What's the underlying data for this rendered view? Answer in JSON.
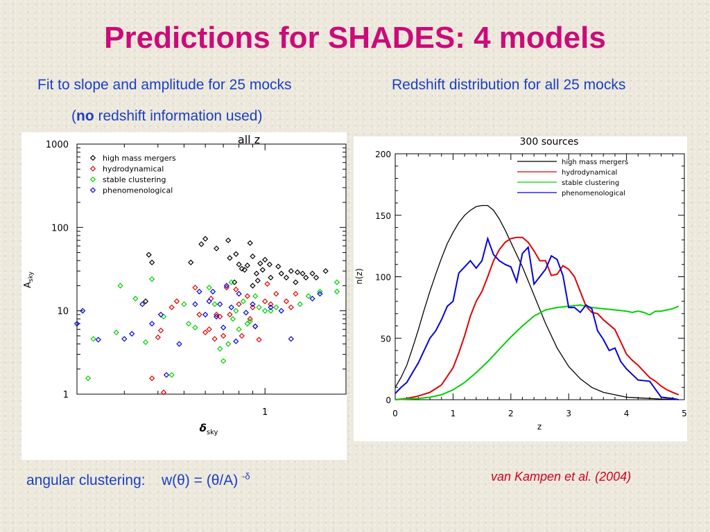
{
  "slide": {
    "title": "Predictions for SHADES: 4 models",
    "left_caption": "Fit to slope and amplitude for 25 mocks",
    "left_caption2_prefix": "(",
    "left_caption2_bold": "no",
    "left_caption2_rest": " redshift information used)",
    "right_caption": "Redshift distribution for all 25 mocks",
    "formula_label": "angular clustering:",
    "formula_main": "w(θ) = (θ/A)",
    "formula_exp": "-δ",
    "credit": "van Kampen et al. (2004)"
  },
  "colors": {
    "title": "#cc0a78",
    "caption": "#1a3fc4",
    "credit": "#d4001e",
    "high_mass_mergers": "#000000",
    "hydrodynamical": "#e00000",
    "stable_clustering": "#00d000",
    "phenomenological": "#0000e0"
  },
  "chart_data": [
    {
      "type": "scatter",
      "title": "all  z",
      "xlabel": "δ",
      "xlabel_sub": "sky",
      "ylabel": "A",
      "ylabel_sub": "sky",
      "x_scale": "log",
      "y_scale": "log",
      "xlim": [
        0.2,
        2.0
      ],
      "ylim": [
        1,
        1000
      ],
      "x_ticks": [
        "1"
      ],
      "y_ticks": [
        "1",
        "10",
        "100",
        "1000"
      ],
      "legend_position": "top-left",
      "series": [
        {
          "name": "high mass mergers",
          "color": "#000000",
          "marker": "diamond",
          "points": [
            [
              0.37,
              47
            ],
            [
              0.38,
              38
            ],
            [
              0.36,
              13
            ],
            [
              0.53,
              38
            ],
            [
              0.58,
              63
            ],
            [
              0.6,
              73
            ],
            [
              0.66,
              56
            ],
            [
              0.73,
              70
            ],
            [
              0.74,
              43
            ],
            [
              0.78,
              48
            ],
            [
              0.8,
              36
            ],
            [
              0.82,
              32
            ],
            [
              0.84,
              31
            ],
            [
              0.86,
              35
            ],
            [
              0.88,
              65
            ],
            [
              0.9,
              45
            ],
            [
              0.93,
              28
            ],
            [
              0.96,
              37
            ],
            [
              0.98,
              31
            ],
            [
              1.0,
              41
            ],
            [
              1.05,
              25
            ],
            [
              1.12,
              34
            ],
            [
              1.15,
              28
            ],
            [
              1.2,
              25
            ],
            [
              1.25,
              30
            ],
            [
              1.32,
              29
            ],
            [
              1.38,
              28
            ],
            [
              1.5,
              28
            ],
            [
              1.55,
              25
            ],
            [
              1.68,
              30
            ],
            [
              1.04,
              36
            ],
            [
              0.94,
              23
            ],
            [
              1.3,
              22
            ],
            [
              1.42,
              25
            ],
            [
              0.77,
              22
            ],
            [
              0.9,
              20
            ]
          ]
        },
        {
          "name": "hydrodynamical",
          "color": "#e00000",
          "marker": "diamond",
          "points": [
            [
              0.38,
              1.55
            ],
            [
              0.42,
              1.05
            ],
            [
              0.4,
              4.8
            ],
            [
              0.41,
              5.8
            ],
            [
              0.45,
              11
            ],
            [
              0.47,
              13
            ],
            [
              0.55,
              19
            ],
            [
              0.57,
              9
            ],
            [
              0.6,
              5.5
            ],
            [
              0.62,
              6
            ],
            [
              0.63,
              14
            ],
            [
              0.65,
              4.6
            ],
            [
              0.66,
              9
            ],
            [
              0.7,
              5
            ],
            [
              0.72,
              19
            ],
            [
              0.74,
              9
            ],
            [
              0.78,
              18
            ],
            [
              0.8,
              12
            ],
            [
              0.82,
              5
            ],
            [
              0.86,
              15
            ],
            [
              0.88,
              8
            ],
            [
              0.9,
              11
            ],
            [
              0.95,
              4.5
            ],
            [
              1.0,
              13
            ],
            [
              1.02,
              21
            ],
            [
              1.05,
              12
            ],
            [
              1.1,
              16
            ],
            [
              1.2,
              13
            ],
            [
              1.25,
              11
            ],
            [
              1.3,
              16
            ],
            [
              0.68,
              8.5
            ],
            [
              0.92,
              6.5
            ]
          ]
        },
        {
          "name": "stable clustering",
          "color": "#00d000",
          "marker": "diamond",
          "points": [
            [
              0.22,
              1.55
            ],
            [
              0.23,
              4.6
            ],
            [
              0.28,
              5.5
            ],
            [
              0.29,
              20
            ],
            [
              0.33,
              14
            ],
            [
              0.36,
              4.2
            ],
            [
              0.38,
              24
            ],
            [
              0.42,
              8.5
            ],
            [
              0.45,
              1.7
            ],
            [
              0.5,
              12
            ],
            [
              0.52,
              7
            ],
            [
              0.55,
              6.3
            ],
            [
              0.62,
              19
            ],
            [
              0.65,
              12
            ],
            [
              0.68,
              3.5
            ],
            [
              0.7,
              2.5
            ],
            [
              0.75,
              22
            ],
            [
              0.76,
              8
            ],
            [
              0.78,
              10
            ],
            [
              0.8,
              6
            ],
            [
              0.83,
              13
            ],
            [
              0.86,
              7
            ],
            [
              0.88,
              7.5
            ],
            [
              0.92,
              15
            ],
            [
              0.95,
              11
            ],
            [
              1.0,
              10
            ],
            [
              1.05,
              10
            ],
            [
              1.1,
              11
            ],
            [
              1.35,
              12
            ],
            [
              1.45,
              15
            ],
            [
              1.6,
              17
            ],
            [
              1.85,
              22
            ],
            [
              1.85,
              17
            ],
            [
              0.73,
              4
            ]
          ]
        },
        {
          "name": "phenomenological",
          "color": "#0000e0",
          "marker": "diamond",
          "points": [
            [
              0.2,
              7
            ],
            [
              0.21,
              10
            ],
            [
              0.24,
              4.5
            ],
            [
              0.3,
              4.6
            ],
            [
              0.32,
              5.3
            ],
            [
              0.35,
              12
            ],
            [
              0.38,
              7
            ],
            [
              0.41,
              9
            ],
            [
              0.43,
              1.7
            ],
            [
              0.48,
              4
            ],
            [
              0.55,
              12
            ],
            [
              0.57,
              17
            ],
            [
              0.6,
              9
            ],
            [
              0.62,
              13
            ],
            [
              0.64,
              17
            ],
            [
              0.66,
              8.5
            ],
            [
              0.68,
              12
            ],
            [
              0.7,
              6.3
            ],
            [
              0.72,
              20
            ],
            [
              0.75,
              11
            ],
            [
              0.78,
              4.3
            ],
            [
              0.8,
              16
            ],
            [
              0.85,
              9.5
            ],
            [
              0.9,
              12
            ],
            [
              0.92,
              6.5
            ],
            [
              1.05,
              11
            ],
            [
              1.15,
              10
            ],
            [
              1.25,
              4.6
            ],
            [
              1.5,
              14
            ],
            [
              1.6,
              16
            ]
          ]
        }
      ]
    },
    {
      "type": "line",
      "title": "300 sources",
      "xlabel": "z",
      "ylabel": "n(z)",
      "xlim": [
        0,
        5
      ],
      "ylim": [
        0,
        200
      ],
      "x_ticks": [
        "0",
        "1",
        "2",
        "3",
        "4",
        "5"
      ],
      "y_ticks": [
        "0",
        "50",
        "100",
        "150",
        "200"
      ],
      "legend_position": "top-right",
      "series": [
        {
          "name": "high mass mergers",
          "color": "#000000",
          "x": [
            0.0,
            0.1,
            0.2,
            0.3,
            0.4,
            0.5,
            0.6,
            0.7,
            0.8,
            0.9,
            1.0,
            1.1,
            1.2,
            1.3,
            1.4,
            1.5,
            1.6,
            1.7,
            1.8,
            1.9,
            2.0,
            2.2,
            2.4,
            2.6,
            2.8,
            3.0,
            3.2,
            3.4,
            3.6,
            3.8,
            4.0,
            4.2,
            4.4,
            4.6,
            4.8,
            4.9
          ],
          "y": [
            10,
            18,
            28,
            42,
            57,
            73,
            88,
            102,
            115,
            127,
            136,
            144,
            150,
            154,
            157,
            158,
            158,
            154,
            147,
            138,
            128,
            108,
            85,
            62,
            42,
            27,
            17,
            10,
            6,
            4,
            2,
            1.5,
            1,
            0.5,
            0.3,
            0.2
          ]
        },
        {
          "name": "hydrodynamical",
          "color": "#e00000",
          "x": [
            0.0,
            0.2,
            0.4,
            0.6,
            0.8,
            1.0,
            1.1,
            1.2,
            1.3,
            1.4,
            1.5,
            1.6,
            1.7,
            1.8,
            1.9,
            2.0,
            2.1,
            2.2,
            2.3,
            2.4,
            2.5,
            2.6,
            2.7,
            2.8,
            2.9,
            3.0,
            3.1,
            3.2,
            3.3,
            3.4,
            3.5,
            3.6,
            3.7,
            3.8,
            3.9,
            4.0,
            4.1,
            4.2,
            4.3,
            4.4,
            4.5,
            4.6,
            4.7,
            4.8,
            4.9
          ],
          "y": [
            0,
            1,
            3,
            6,
            12,
            26,
            38,
            52,
            68,
            80,
            88,
            100,
            113,
            122,
            128,
            131,
            132,
            132,
            128,
            121,
            113,
            113,
            101,
            102,
            109,
            106,
            100,
            88,
            76,
            71,
            70,
            65,
            61,
            57,
            47,
            37,
            32,
            28,
            23,
            18,
            15,
            11,
            8,
            6,
            4
          ]
        },
        {
          "name": "stable clustering",
          "color": "#00d000",
          "x": [
            0.0,
            0.2,
            0.4,
            0.6,
            0.8,
            1.0,
            1.2,
            1.4,
            1.6,
            1.8,
            2.0,
            2.2,
            2.4,
            2.6,
            2.8,
            3.0,
            3.2,
            3.4,
            3.6,
            3.8,
            4.0,
            4.1,
            4.2,
            4.3,
            4.4,
            4.5,
            4.6,
            4.7,
            4.8,
            4.9
          ],
          "y": [
            0,
            0.5,
            1,
            2,
            4,
            8,
            14,
            22,
            31,
            41,
            51,
            60,
            68,
            73,
            75,
            76,
            77,
            75,
            74,
            73,
            72,
            71,
            72,
            71,
            69,
            72,
            72,
            73,
            74,
            76
          ]
        },
        {
          "name": "phenomenological",
          "color": "#0000e0",
          "x": [
            0.0,
            0.1,
            0.2,
            0.3,
            0.4,
            0.5,
            0.6,
            0.7,
            0.8,
            0.9,
            1.0,
            1.1,
            1.2,
            1.3,
            1.4,
            1.5,
            1.6,
            1.7,
            1.8,
            1.9,
            2.0,
            2.1,
            2.2,
            2.3,
            2.4,
            2.5,
            2.6,
            2.7,
            2.8,
            2.9,
            3.0,
            3.1,
            3.2,
            3.3,
            3.4,
            3.5,
            3.6,
            3.7,
            3.8,
            3.9,
            4.0,
            4.2,
            4.4,
            4.6,
            4.8,
            4.9
          ],
          "y": [
            5,
            10,
            14,
            22,
            30,
            40,
            50,
            56,
            65,
            76,
            80,
            103,
            108,
            113,
            107,
            113,
            131,
            118,
            113,
            110,
            108,
            96,
            119,
            124,
            94,
            100,
            106,
            117,
            114,
            101,
            75,
            75,
            71,
            77,
            74,
            56,
            49,
            40,
            42,
            31,
            25,
            16,
            15,
            2,
            1,
            0
          ]
        }
      ]
    }
  ]
}
